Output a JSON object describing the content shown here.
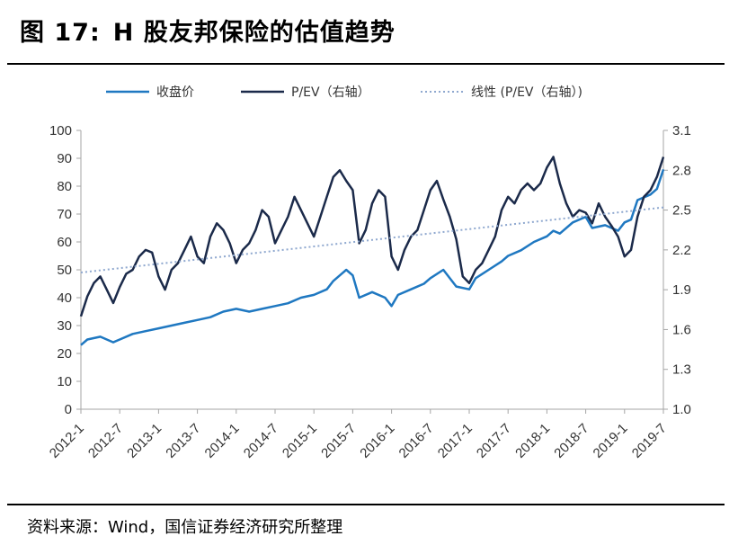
{
  "header": {
    "figure_label": "图 17:",
    "title": "H 股友邦保险的估值趋势"
  },
  "footer": {
    "source": "资料来源：Wind，国信证券经济研究所整理"
  },
  "colors": {
    "price": "#1f78c1",
    "pev": "#1b2a4a",
    "trend": "#8fa8cf",
    "axis": "#a6a6a6"
  },
  "chart_data": {
    "type": "line",
    "title": "",
    "legend_placement": "top",
    "x_ticks": [
      "2012-1",
      "2012-7",
      "2013-1",
      "2013-7",
      "2014-1",
      "2014-7",
      "2015-1",
      "2015-7",
      "2016-1",
      "2016-7",
      "2017-1",
      "2017-7",
      "2018-1",
      "2018-7",
      "2019-1",
      "2019-7"
    ],
    "y_left": {
      "ticks": [
        0,
        10,
        20,
        30,
        40,
        50,
        60,
        70,
        80,
        90,
        100
      ],
      "range": [
        0,
        100
      ]
    },
    "y_right": {
      "ticks": [
        "1.0",
        "1.3",
        "1.6",
        "1.9",
        "2.2",
        "2.5",
        "2.8",
        "3.1"
      ],
      "range": [
        1.0,
        3.1
      ]
    },
    "series": [
      {
        "name": "收盘价",
        "axis": "left",
        "style": "solid",
        "x": [
          "2012-1",
          "2012-2",
          "2012-4",
          "2012-6",
          "2012-7",
          "2012-9",
          "2012-11",
          "2013-1",
          "2013-3",
          "2013-5",
          "2013-7",
          "2013-9",
          "2013-11",
          "2014-1",
          "2014-3",
          "2014-5",
          "2014-7",
          "2014-9",
          "2014-11",
          "2015-1",
          "2015-3",
          "2015-4",
          "2015-6",
          "2015-7",
          "2015-8",
          "2015-10",
          "2015-12",
          "2016-1",
          "2016-2",
          "2016-4",
          "2016-6",
          "2016-7",
          "2016-9",
          "2016-11",
          "2017-1",
          "2017-2",
          "2017-4",
          "2017-6",
          "2017-7",
          "2017-9",
          "2017-11",
          "2018-1",
          "2018-2",
          "2018-3",
          "2018-5",
          "2018-7",
          "2018-8",
          "2018-10",
          "2018-12",
          "2019-1",
          "2019-2",
          "2019-3",
          "2019-5",
          "2019-6",
          "2019-7"
        ],
        "values": [
          23,
          25,
          26,
          24,
          25,
          27,
          28,
          29,
          30,
          31,
          32,
          33,
          35,
          36,
          35,
          36,
          37,
          38,
          40,
          41,
          43,
          46,
          50,
          48,
          40,
          42,
          40,
          37,
          41,
          43,
          45,
          47,
          50,
          44,
          43,
          47,
          50,
          53,
          55,
          57,
          60,
          62,
          64,
          63,
          67,
          69,
          65,
          66,
          64,
          67,
          68,
          75,
          77,
          79,
          86
        ]
      },
      {
        "name": "P/EV（右轴）",
        "axis": "right",
        "style": "solid",
        "x": [
          "2012-1",
          "2012-2",
          "2012-3",
          "2012-4",
          "2012-5",
          "2012-6",
          "2012-7",
          "2012-8",
          "2012-9",
          "2012-10",
          "2012-11",
          "2012-12",
          "2013-1",
          "2013-2",
          "2013-3",
          "2013-4",
          "2013-5",
          "2013-6",
          "2013-7",
          "2013-8",
          "2013-9",
          "2013-10",
          "2013-11",
          "2013-12",
          "2014-1",
          "2014-2",
          "2014-3",
          "2014-4",
          "2014-5",
          "2014-6",
          "2014-7",
          "2014-8",
          "2014-9",
          "2014-10",
          "2014-11",
          "2014-12",
          "2015-1",
          "2015-2",
          "2015-3",
          "2015-4",
          "2015-5",
          "2015-6",
          "2015-7",
          "2015-8",
          "2015-9",
          "2015-10",
          "2015-11",
          "2015-12",
          "2016-1",
          "2016-2",
          "2016-3",
          "2016-4",
          "2016-5",
          "2016-6",
          "2016-7",
          "2016-8",
          "2016-9",
          "2016-10",
          "2016-11",
          "2016-12",
          "2017-1",
          "2017-2",
          "2017-3",
          "2017-4",
          "2017-5",
          "2017-6",
          "2017-7",
          "2017-8",
          "2017-9",
          "2017-10",
          "2017-11",
          "2017-12",
          "2018-1",
          "2018-2",
          "2018-3",
          "2018-4",
          "2018-5",
          "2018-6",
          "2018-7",
          "2018-8",
          "2018-9",
          "2018-10",
          "2018-11",
          "2018-12",
          "2019-1",
          "2019-2",
          "2019-3",
          "2019-4",
          "2019-5",
          "2019-6",
          "2019-7"
        ],
        "values": [
          1.7,
          1.85,
          1.95,
          2.0,
          1.9,
          1.8,
          1.92,
          2.02,
          2.05,
          2.15,
          2.2,
          2.18,
          2.0,
          1.9,
          2.05,
          2.1,
          2.2,
          2.3,
          2.15,
          2.1,
          2.3,
          2.4,
          2.35,
          2.25,
          2.1,
          2.2,
          2.25,
          2.35,
          2.5,
          2.45,
          2.25,
          2.35,
          2.45,
          2.6,
          2.5,
          2.4,
          2.3,
          2.45,
          2.6,
          2.75,
          2.8,
          2.72,
          2.65,
          2.25,
          2.35,
          2.55,
          2.65,
          2.6,
          2.15,
          2.05,
          2.2,
          2.3,
          2.35,
          2.5,
          2.65,
          2.72,
          2.58,
          2.45,
          2.28,
          2.0,
          1.95,
          2.05,
          2.1,
          2.2,
          2.3,
          2.5,
          2.6,
          2.55,
          2.65,
          2.7,
          2.65,
          2.7,
          2.82,
          2.9,
          2.7,
          2.55,
          2.45,
          2.5,
          2.48,
          2.4,
          2.55,
          2.45,
          2.38,
          2.3,
          2.15,
          2.2,
          2.45,
          2.6,
          2.65,
          2.75,
          2.9
        ]
      },
      {
        "name": "线性 (P/EV（右轴）)",
        "axis": "right",
        "style": "dotted",
        "x": [
          "2012-1",
          "2019-7"
        ],
        "values": [
          2.03,
          2.52
        ]
      }
    ]
  }
}
